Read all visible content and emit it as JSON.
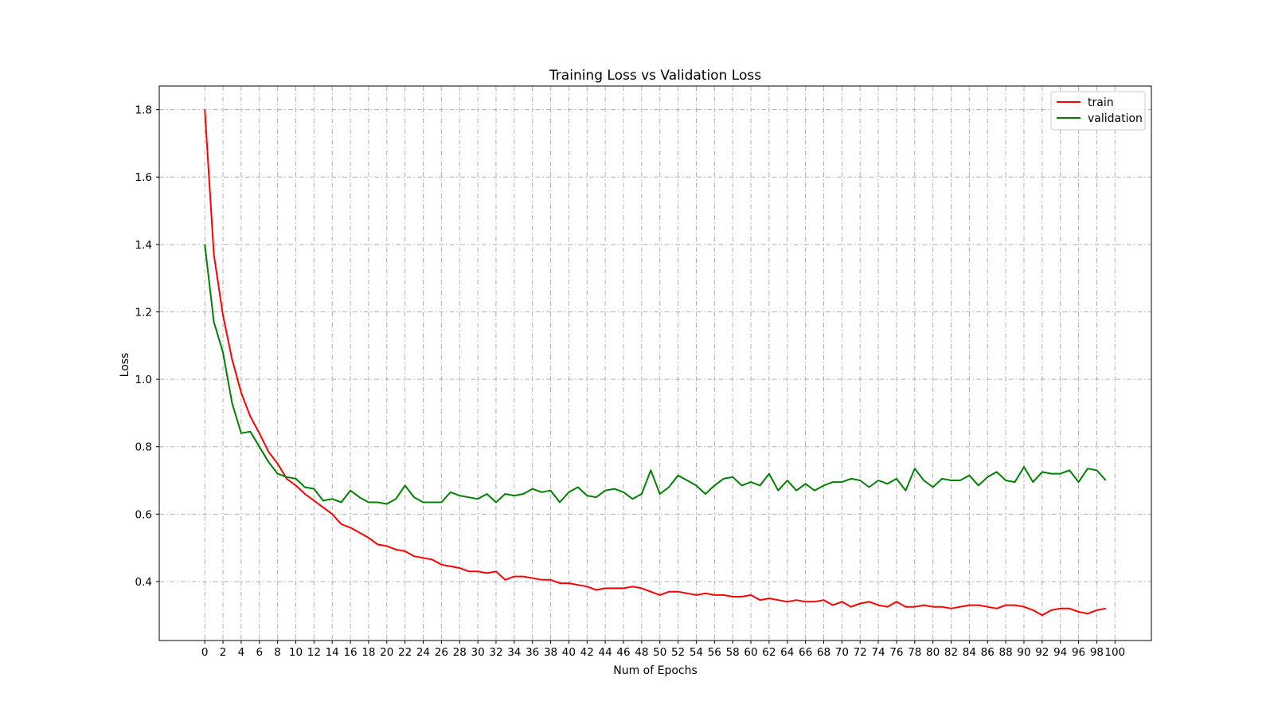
{
  "chart_data": {
    "type": "line",
    "title": "Training Loss vs Validation Loss",
    "xlabel": "Num of Epochs",
    "ylabel": "Loss",
    "xlim": [
      -5,
      104
    ],
    "ylim": [
      0.225,
      1.87
    ],
    "grid": true,
    "legend_position": "top-right",
    "xticks": [
      0,
      2,
      4,
      6,
      8,
      10,
      12,
      14,
      16,
      18,
      20,
      22,
      24,
      26,
      28,
      30,
      32,
      34,
      36,
      38,
      40,
      42,
      44,
      46,
      48,
      50,
      52,
      54,
      56,
      58,
      60,
      62,
      64,
      66,
      68,
      70,
      72,
      74,
      76,
      78,
      80,
      82,
      84,
      86,
      88,
      90,
      92,
      94,
      96,
      98,
      100
    ],
    "yticks": [
      0.4,
      0.6,
      0.8,
      1.0,
      1.2,
      1.4,
      1.6,
      1.8
    ],
    "ytick_labels": [
      "0.4",
      "0.6",
      "0.8",
      "1.0",
      "1.2",
      "1.4",
      "1.6",
      "1.8"
    ],
    "series": [
      {
        "name": "train",
        "color": "#ff0000",
        "values": [
          1.8,
          1.37,
          1.19,
          1.06,
          0.96,
          0.89,
          0.84,
          0.785,
          0.75,
          0.705,
          0.685,
          0.66,
          0.64,
          0.62,
          0.6,
          0.57,
          0.56,
          0.545,
          0.53,
          0.51,
          0.505,
          0.495,
          0.49,
          0.475,
          0.47,
          0.465,
          0.45,
          0.445,
          0.44,
          0.43,
          0.43,
          0.425,
          0.43,
          0.405,
          0.415,
          0.415,
          0.41,
          0.405,
          0.405,
          0.395,
          0.395,
          0.39,
          0.385,
          0.375,
          0.38,
          0.38,
          0.38,
          0.385,
          0.38,
          0.37,
          0.36,
          0.37,
          0.37,
          0.365,
          0.36,
          0.365,
          0.36,
          0.36,
          0.355,
          0.355,
          0.36,
          0.345,
          0.35,
          0.345,
          0.34,
          0.345,
          0.34,
          0.34,
          0.345,
          0.33,
          0.34,
          0.325,
          0.335,
          0.34,
          0.33,
          0.325,
          0.34,
          0.325,
          0.325,
          0.33,
          0.325,
          0.325,
          0.32,
          0.325,
          0.33,
          0.33,
          0.325,
          0.32,
          0.33,
          0.33,
          0.325,
          0.315,
          0.3,
          0.315,
          0.32,
          0.32,
          0.31,
          0.305,
          0.315,
          0.32
        ]
      },
      {
        "name": "validation",
        "color": "#008000",
        "values": [
          1.4,
          1.17,
          1.08,
          0.93,
          0.84,
          0.845,
          0.8,
          0.755,
          0.72,
          0.71,
          0.705,
          0.68,
          0.675,
          0.64,
          0.645,
          0.635,
          0.67,
          0.65,
          0.635,
          0.635,
          0.63,
          0.645,
          0.685,
          0.65,
          0.635,
          0.635,
          0.635,
          0.665,
          0.655,
          0.65,
          0.645,
          0.66,
          0.635,
          0.66,
          0.655,
          0.66,
          0.675,
          0.665,
          0.67,
          0.635,
          0.665,
          0.68,
          0.655,
          0.65,
          0.67,
          0.675,
          0.665,
          0.645,
          0.66,
          0.73,
          0.66,
          0.68,
          0.715,
          0.7,
          0.685,
          0.66,
          0.685,
          0.705,
          0.71,
          0.685,
          0.695,
          0.685,
          0.72,
          0.67,
          0.7,
          0.67,
          0.69,
          0.67,
          0.685,
          0.695,
          0.695,
          0.705,
          0.7,
          0.68,
          0.7,
          0.69,
          0.705,
          0.67,
          0.735,
          0.7,
          0.68,
          0.705,
          0.7,
          0.7,
          0.715,
          0.685,
          0.71,
          0.725,
          0.7,
          0.695,
          0.74,
          0.695,
          0.725,
          0.72,
          0.72,
          0.73,
          0.695,
          0.735,
          0.73,
          0.7
        ]
      }
    ]
  }
}
